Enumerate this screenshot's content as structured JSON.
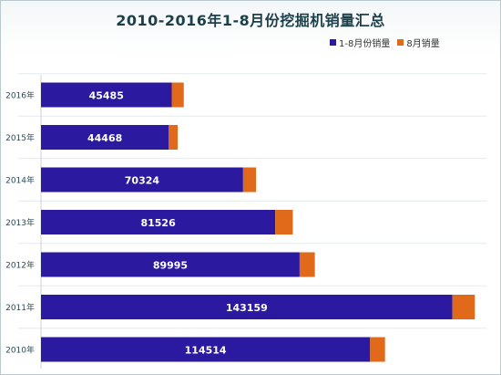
{
  "chart_data": {
    "type": "bar",
    "orientation": "horizontal",
    "stacked": true,
    "title": "2010-2016年1-8月份挖掘机销量汇总",
    "categories": [
      "2016年",
      "2015年",
      "2014年",
      "2013年",
      "2012年",
      "2011年",
      "2010年"
    ],
    "series": [
      {
        "name": "1-8月份销量",
        "values": [
          45485,
          44468,
          70324,
          81526,
          89995,
          143159,
          114514
        ],
        "color": "#2b1aa0"
      },
      {
        "name": "8月销量",
        "values": [
          4200,
          3100,
          4500,
          6100,
          5300,
          7800,
          5200
        ],
        "color": "#e06a1a"
      }
    ],
    "xlim": [
      0,
      155000
    ],
    "grid": true,
    "legend_position": "top-right"
  }
}
